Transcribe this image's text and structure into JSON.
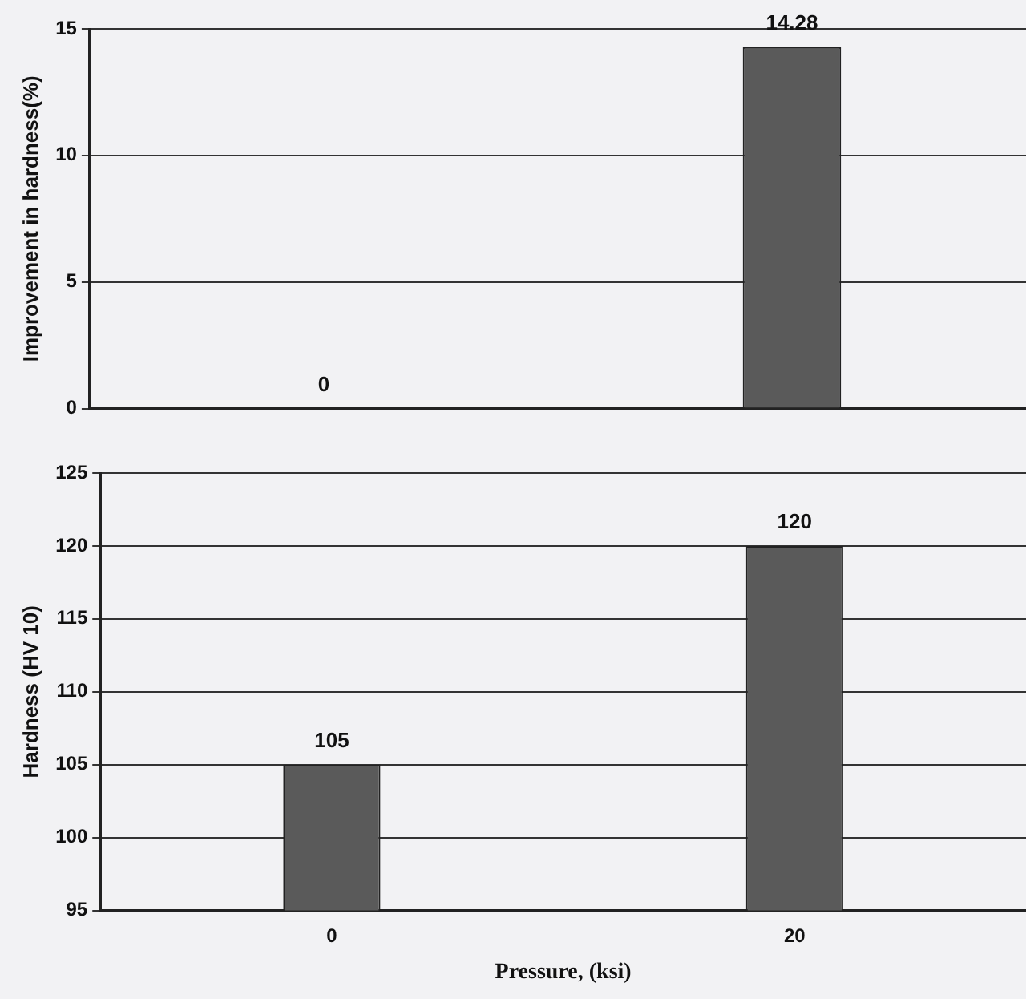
{
  "chart_data": [
    {
      "type": "bar",
      "categories": [
        "0",
        "20"
      ],
      "series": [
        {
          "color": "#5a5a5a",
          "values": [
            0,
            14.28
          ]
        }
      ],
      "ylabel": "Improvement in hardness(%)",
      "ylim": [
        0,
        15
      ],
      "yticks": [
        0,
        5,
        10,
        15
      ],
      "grid": "y",
      "data_labels": true,
      "tick_labels": "y",
      "legend": false
    },
    {
      "type": "bar",
      "categories": [
        "0",
        "20"
      ],
      "series": [
        {
          "color": "#5a5a5a",
          "values": [
            105,
            120
          ]
        }
      ],
      "xlabel": "Pressure, (ksi)",
      "ylabel": "Hardness (HV 10)",
      "ylim": [
        95,
        125
      ],
      "yticks": [
        95,
        100,
        105,
        110,
        115,
        120,
        125
      ],
      "grid": "y",
      "data_labels": true,
      "legend": false
    }
  ]
}
